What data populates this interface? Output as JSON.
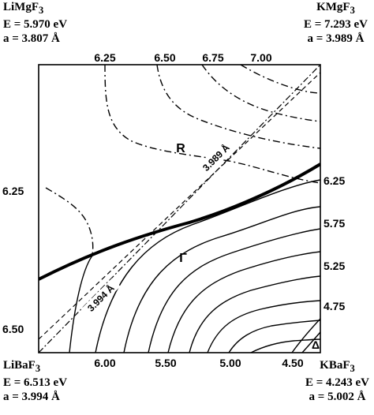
{
  "corners": {
    "top_left": {
      "name": "LiMgF",
      "sub": "3",
      "energy": "E = 5.970 eV",
      "lattice": "a = 3.807 Å"
    },
    "top_right": {
      "name": "KMgF",
      "sub": "3",
      "energy": "E = 7.293 eV",
      "lattice": "a = 3.989 Å"
    },
    "bottom_left": {
      "name": "LiBaF",
      "sub": "3",
      "energy": "E = 6.513 eV",
      "lattice": "a = 3.994 Å"
    },
    "bottom_right": {
      "name": "KBaF",
      "sub": "3",
      "energy": "E = 4.243 eV",
      "lattice": "a = 5.002 Å"
    }
  },
  "chart_data": {
    "type": "contour",
    "title": "",
    "xlabel": "",
    "ylabel": "",
    "top_ticks": [
      "6.25",
      "6.50",
      "6.75",
      "7.00"
    ],
    "bottom_ticks": [
      "6.00",
      "5.50",
      "5.00",
      "4.50"
    ],
    "left_ticks": [
      "6.25",
      "6.50"
    ],
    "right_ticks": [
      "6.25",
      "5.75",
      "5.25",
      "4.75"
    ],
    "region_labels": [
      "R",
      "Γ",
      "Δ"
    ],
    "lattice_lines": [
      {
        "label": "3.989 Å",
        "style": "dash-dot"
      },
      {
        "label": "3.994 Å",
        "style": "dashed"
      }
    ],
    "series": [
      {
        "name": "R",
        "style": "dash-dot",
        "levels": [
          6.25,
          6.5,
          6.75,
          7.0
        ]
      },
      {
        "name": "Γ",
        "style": "solid",
        "levels": [
          6.25,
          6.0,
          5.75,
          5.5,
          5.25,
          5.0,
          4.75,
          4.5
        ]
      }
    ],
    "phase_boundary": {
      "style": "bold-solid"
    }
  }
}
